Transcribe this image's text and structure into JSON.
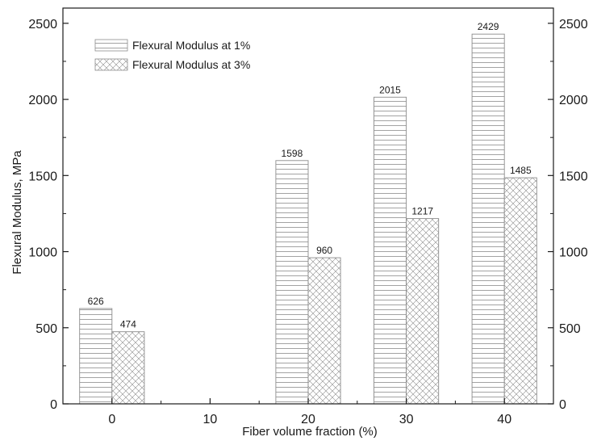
{
  "chart_data": {
    "type": "bar",
    "title": "",
    "xlabel": "Fiber volume fraction (%)",
    "ylabel": "Flexural Modulus, MPa",
    "x_ticks": [
      "0",
      "10",
      "20",
      "30",
      "40"
    ],
    "x_range": [
      -5,
      45
    ],
    "ylim": [
      0,
      2600
    ],
    "y_ticks": [
      "0",
      "500",
      "1000",
      "1500",
      "2000",
      "2500"
    ],
    "y_tick_values": [
      0,
      500,
      1000,
      1500,
      2000,
      2500
    ],
    "right_axis_mirrored": true,
    "grid": false,
    "legend_position": "top-left",
    "series": [
      {
        "name": "Flexural Modulus at 1%",
        "pattern": "horizontal-lines",
        "x": [
          0,
          20,
          30,
          40
        ],
        "values": [
          626,
          1598,
          2015,
          2429
        ],
        "labels": [
          "626",
          "1598",
          "2015",
          "2429"
        ]
      },
      {
        "name": "Flexural Modulus at 3%",
        "pattern": "crosshatch",
        "x": [
          0,
          20,
          30,
          40
        ],
        "values": [
          474,
          960,
          1217,
          1485
        ],
        "labels": [
          "474",
          "960",
          "1217",
          "1485"
        ]
      }
    ],
    "colors": {
      "axis": "#1a1a1a",
      "bar_stroke": "#8c8c8c",
      "pattern": "#8c8c8c"
    }
  }
}
